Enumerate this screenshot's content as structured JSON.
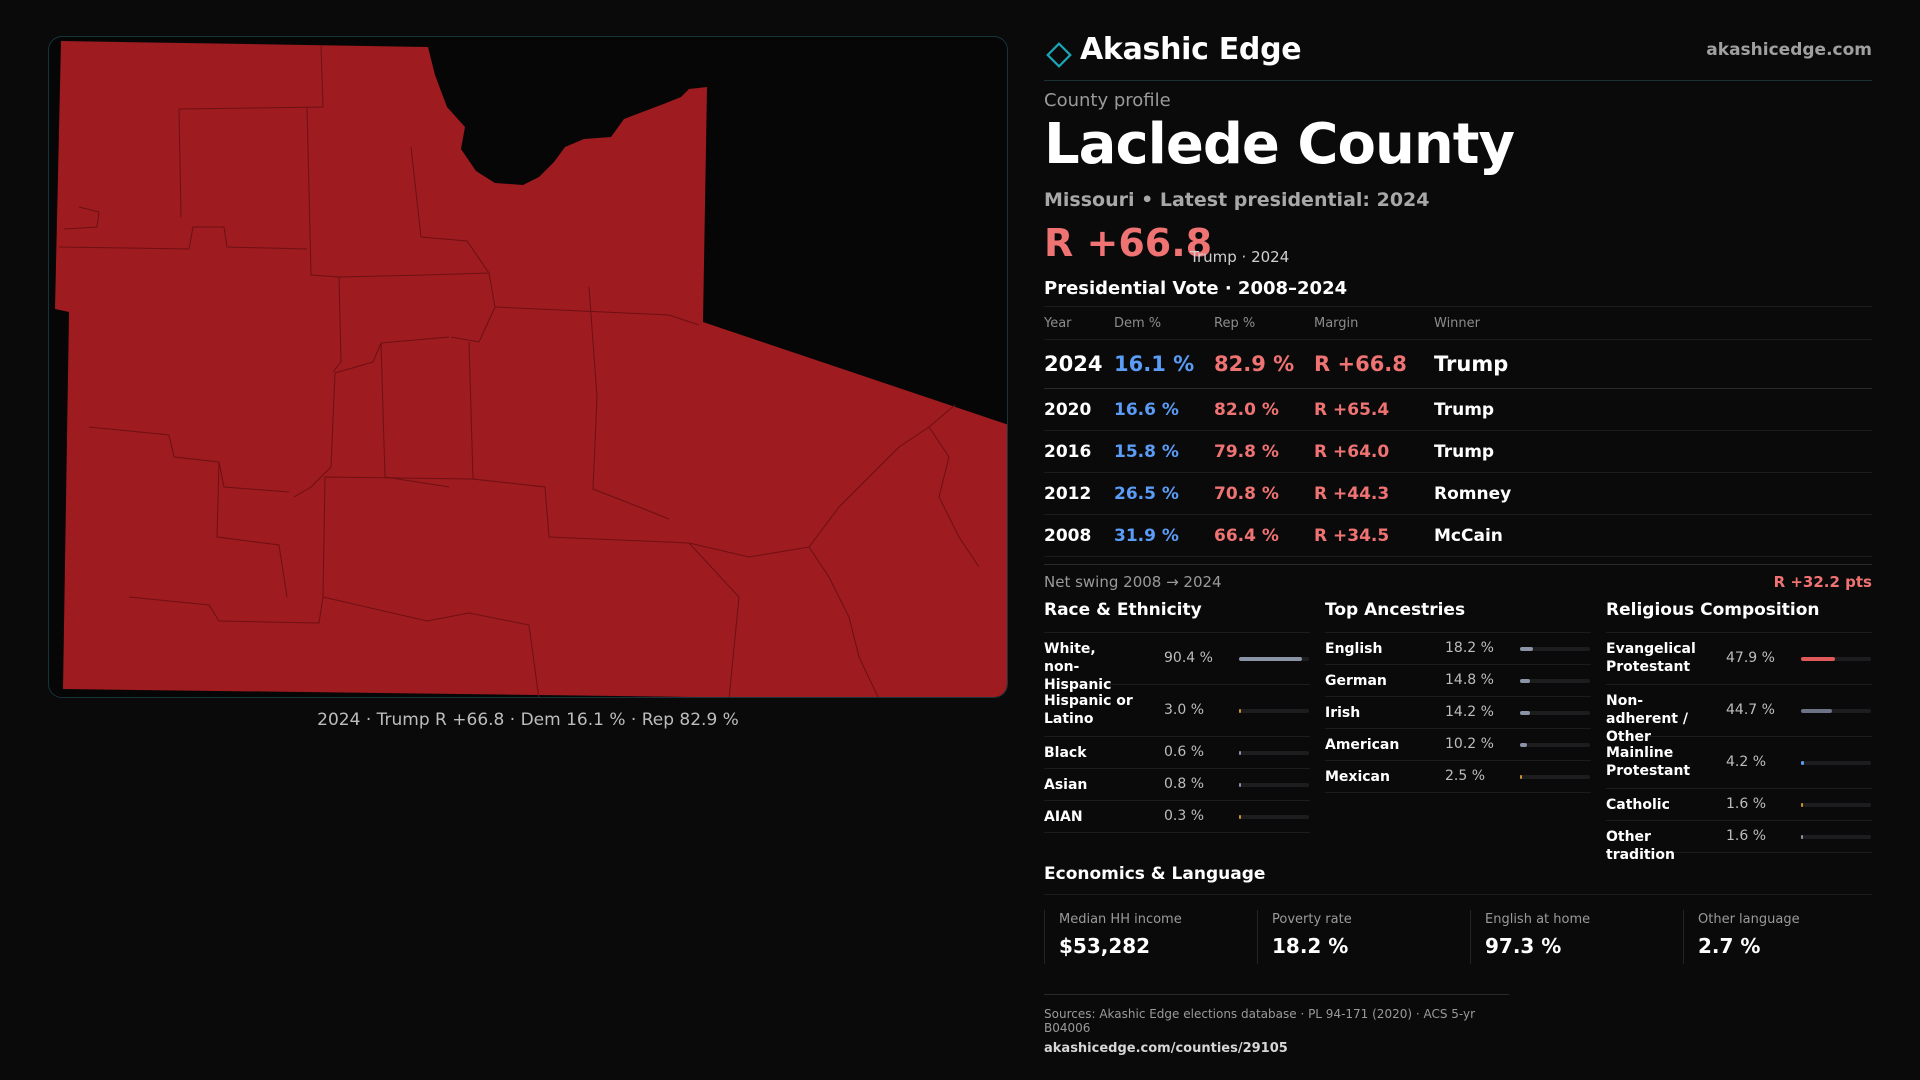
{
  "brand": {
    "name": "Akashic Edge",
    "url": "akashicedge.com",
    "accent": "#1aa6b7"
  },
  "map": {
    "fill_color": "#9e1b1f",
    "border_color": "#6d1014",
    "caption": "2024 · Trump R +66.8 · Dem 16.1 % · Rep 82.9 %"
  },
  "profile": {
    "eyebrow": "County profile",
    "county": "Laclede County",
    "subtitle": "Missouri • Latest presidential: 2024",
    "margin": "R +66.8",
    "margin_note": "Trump · 2024"
  },
  "vote": {
    "title": "Presidential Vote · 2008–2024",
    "headers": [
      "Year",
      "Dem %",
      "Rep %",
      "Margin",
      "Winner"
    ],
    "rows": [
      {
        "year": "2024",
        "dem": "16.1 %",
        "rep": "82.9 %",
        "margin": "R +66.8",
        "winner": "Trump"
      },
      {
        "year": "2020",
        "dem": "16.6 %",
        "rep": "82.0 %",
        "margin": "R +65.4",
        "winner": "Trump"
      },
      {
        "year": "2016",
        "dem": "15.8 %",
        "rep": "79.8 %",
        "margin": "R +64.0",
        "winner": "Trump"
      },
      {
        "year": "2012",
        "dem": "26.5 %",
        "rep": "70.8 %",
        "margin": "R +44.3",
        "winner": "Romney"
      },
      {
        "year": "2008",
        "dem": "31.9 %",
        "rep": "66.4 %",
        "margin": "R +34.5",
        "winner": "McCain"
      }
    ],
    "swing_label": "Net swing 2008 → 2024",
    "swing_value": "R +32.2 pts"
  },
  "race": {
    "title": "Race & Ethnicity",
    "items": [
      {
        "label": "White, non-Hispanic",
        "value": "90.4 %",
        "pct": 90.4,
        "color": "#8a94a6"
      },
      {
        "label": "Hispanic or Latino",
        "value": "3.0 %",
        "pct": 3.0,
        "color": "#c9952b"
      },
      {
        "label": "Black",
        "value": "0.6 %",
        "pct": 0.6,
        "color": "#8a94a6"
      },
      {
        "label": "Asian",
        "value": "0.8 %",
        "pct": 0.8,
        "color": "#8a94a6"
      },
      {
        "label": "AIAN",
        "value": "0.3 %",
        "pct": 0.3,
        "color": "#c9952b"
      }
    ]
  },
  "ancestry": {
    "title": "Top Ancestries",
    "items": [
      {
        "label": "English",
        "value": "18.2 %",
        "pct": 18.2,
        "color": "#8a94a6"
      },
      {
        "label": "German",
        "value": "14.8 %",
        "pct": 14.8,
        "color": "#8a94a6"
      },
      {
        "label": "Irish",
        "value": "14.2 %",
        "pct": 14.2,
        "color": "#8a94a6"
      },
      {
        "label": "American",
        "value": "10.2 %",
        "pct": 10.2,
        "color": "#8a94a6"
      },
      {
        "label": "Mexican",
        "value": "2.5 %",
        "pct": 2.5,
        "color": "#c9952b"
      }
    ]
  },
  "religion": {
    "title": "Religious Composition",
    "items": [
      {
        "label": "Evangelical Protestant",
        "value": "47.9 %",
        "pct": 47.9,
        "color": "#e05a5a"
      },
      {
        "label": "Non-adherent / Other",
        "value": "44.7 %",
        "pct": 44.7,
        "color": "#6b7384"
      },
      {
        "label": "Mainline Protestant",
        "value": "4.2 %",
        "pct": 4.2,
        "color": "#5b9cf6"
      },
      {
        "label": "Catholic",
        "value": "1.6 %",
        "pct": 1.6,
        "color": "#c9952b"
      },
      {
        "label": "Other tradition",
        "value": "1.6 %",
        "pct": 1.6,
        "color": "#8a94a6"
      }
    ]
  },
  "econ": {
    "title": "Economics & Language",
    "cards": [
      {
        "label": "Median HH income",
        "value": "$53,282"
      },
      {
        "label": "Poverty rate",
        "value": "18.2 %"
      },
      {
        "label": "English at home",
        "value": "97.3 %"
      },
      {
        "label": "Other language",
        "value": "2.7 %"
      }
    ]
  },
  "sources": {
    "line1": "Sources: Akashic Edge elections database · PL 94-171 (2020) · ACS 5-yr B04006",
    "line2": "akashicedge.com/counties/29105"
  }
}
